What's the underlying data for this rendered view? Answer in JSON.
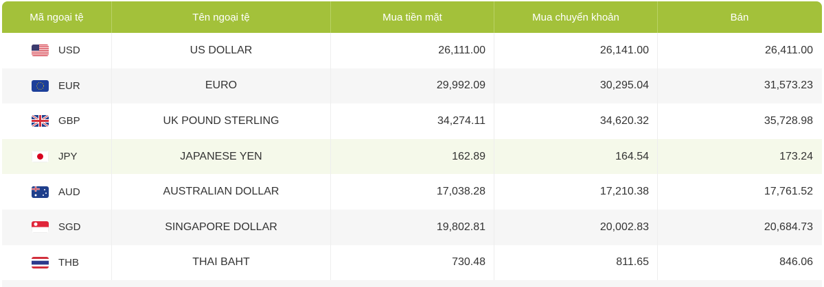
{
  "headers": [
    "Mã ngoại tệ",
    "Tên ngoại tệ",
    "Mua tiền mặt",
    "Mua chuyển khoản",
    "Bán"
  ],
  "header_color": "#a3c13a",
  "rows": [
    {
      "code": "USD",
      "name": "US DOLLAR",
      "cash": "26,111.00",
      "transfer": "26,141.00",
      "sell": "26,411.00",
      "flag": "us-flag-icon"
    },
    {
      "code": "EUR",
      "name": "EURO",
      "cash": "29,992.09",
      "transfer": "30,295.04",
      "sell": "31,573.23",
      "flag": "eu-flag-icon"
    },
    {
      "code": "GBP",
      "name": "UK POUND STERLING",
      "cash": "34,274.11",
      "transfer": "34,620.32",
      "sell": "35,728.98",
      "flag": "uk-flag-icon"
    },
    {
      "code": "JPY",
      "name": "JAPANESE YEN",
      "cash": "162.89",
      "transfer": "164.54",
      "sell": "173.24",
      "flag": "japan-flag-icon"
    },
    {
      "code": "AUD",
      "name": "AUSTRALIAN DOLLAR",
      "cash": "17,038.28",
      "transfer": "17,210.38",
      "sell": "17,761.52",
      "flag": "australia-flag-icon"
    },
    {
      "code": "SGD",
      "name": "SINGAPORE DOLLAR",
      "cash": "19,802.81",
      "transfer": "20,002.83",
      "sell": "20,684.73",
      "flag": "singapore-flag-icon"
    },
    {
      "code": "THB",
      "name": "THAI BAHT",
      "cash": "730.48",
      "transfer": "811.65",
      "sell": "846.06",
      "flag": "thailand-flag-icon"
    }
  ]
}
